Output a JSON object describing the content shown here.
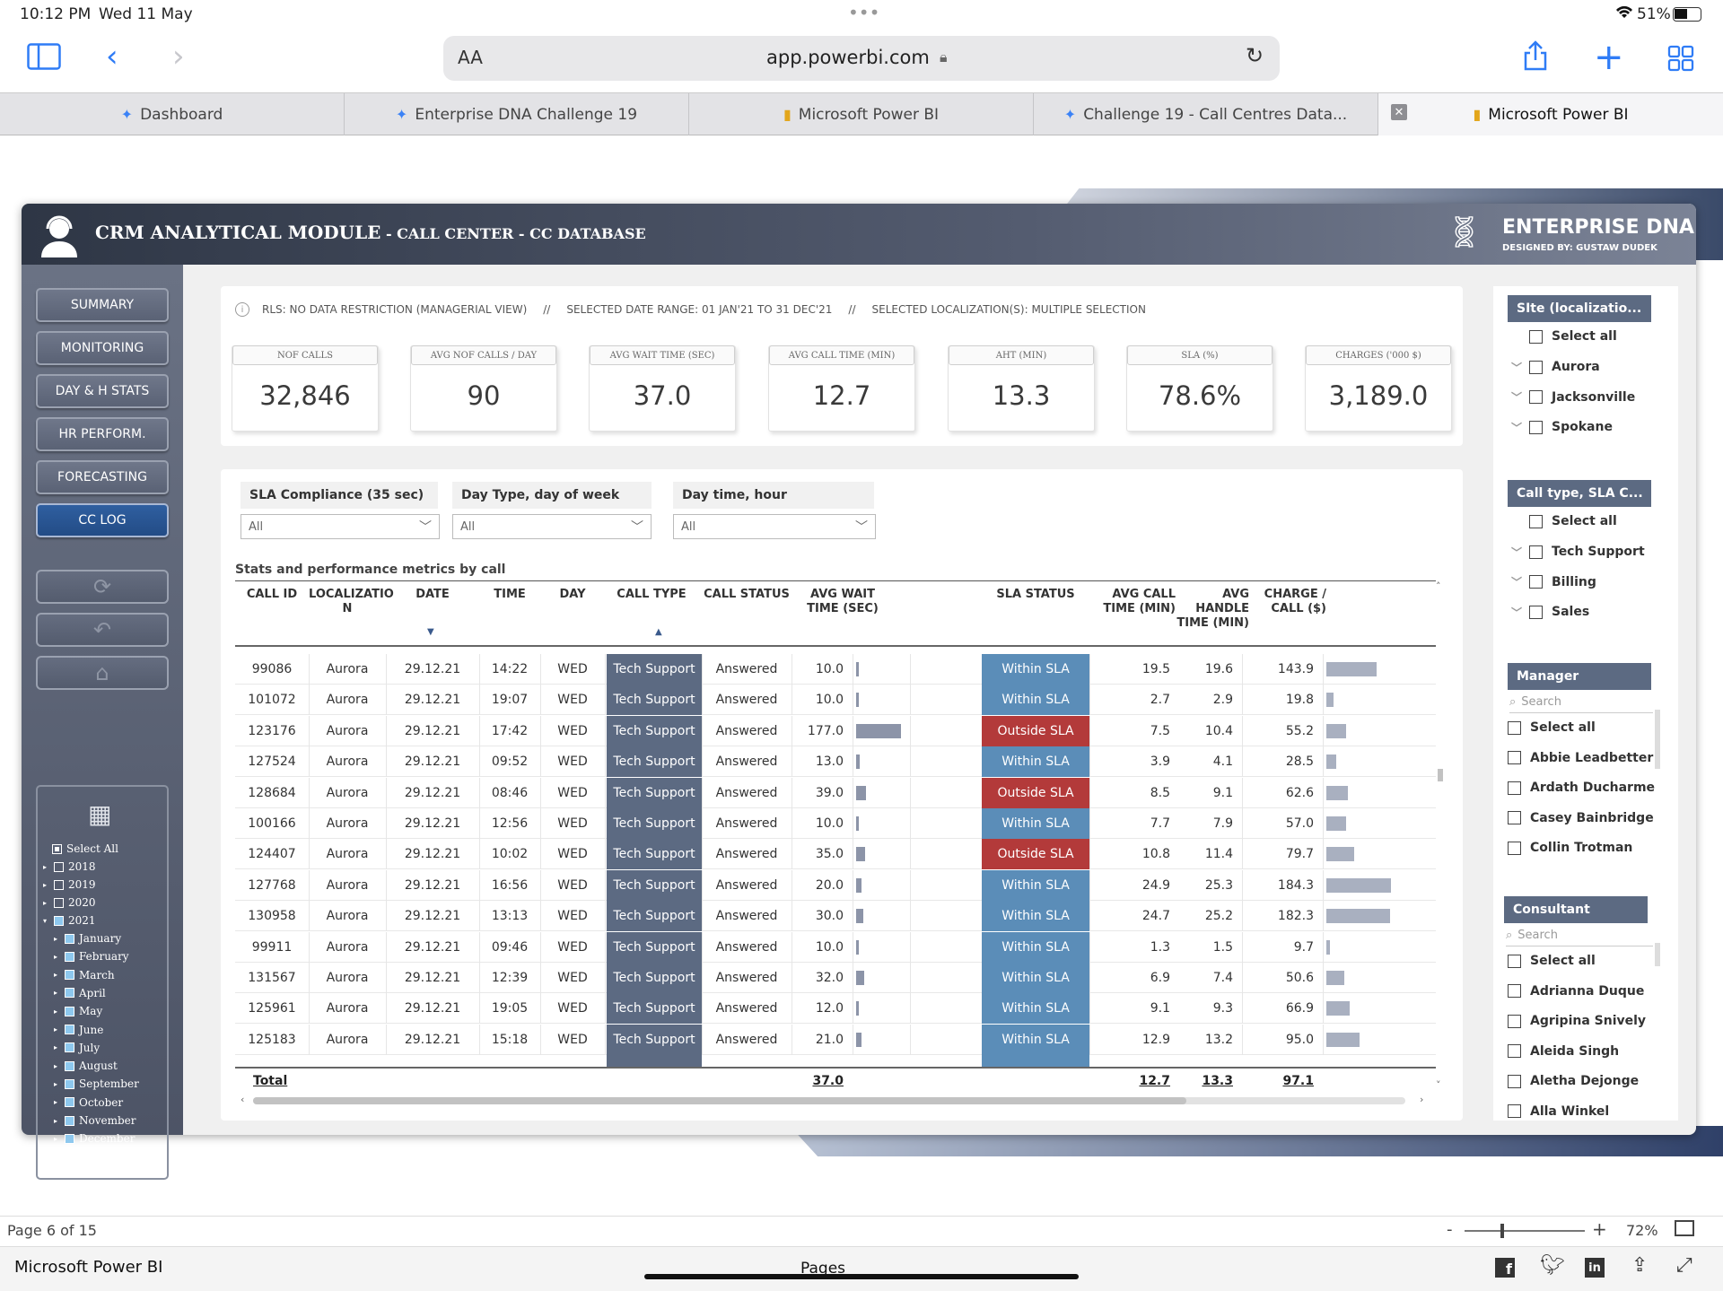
{
  "status_bar": {
    "time": "10:12 PM",
    "date": "Wed 11 May",
    "battery": "51%"
  },
  "browser": {
    "url": "app.powerbi.com",
    "text_size_label": "AA",
    "tabs": [
      {
        "label": "Dashboard"
      },
      {
        "label": "Enterprise DNA Challenge 19"
      },
      {
        "label": "Microsoft Power BI"
      },
      {
        "label": "Challenge 19 - Call Centres Data..."
      },
      {
        "label": "Microsoft Power BI"
      }
    ]
  },
  "report": {
    "title_main": "CRM ANALYTICAL MODULE",
    "title_sub": " - CALL CENTER - CC DATABASE",
    "brand": "ENTERPRISE DNA",
    "designed_by": "DESIGNED BY: GUSTAW DUDEK",
    "nav": [
      "SUMMARY",
      "MONITORING",
      "DAY & H STATS",
      "HR PERFORM.",
      "FORECASTING",
      "CC LOG"
    ],
    "date_tree": {
      "select_all": "Select All",
      "years": [
        "2018",
        "2019",
        "2020",
        "2021"
      ],
      "months": [
        "January",
        "February",
        "March",
        "April",
        "May",
        "June",
        "July",
        "August",
        "September",
        "October",
        "November",
        "December"
      ]
    },
    "info_bar": {
      "rls": "RLS: NO DATA RESTRICTION (MANAGERIAL VIEW)",
      "sep": "//",
      "date_range": "SELECTED DATE RANGE: 01 JAN'21 TO 31 DEC'21",
      "localization": "SELECTED LOCALIZATION(S): MULTIPLE SELECTION"
    },
    "kpis": [
      {
        "label": "NOF CALLS",
        "value": "32,846"
      },
      {
        "label": "AVG NOF CALLS / DAY",
        "value": "90"
      },
      {
        "label": "AVG WAIT TIME (SEC)",
        "value": "37.0"
      },
      {
        "label": "AVG CALL TIME (MIN)",
        "value": "12.7"
      },
      {
        "label": "AHT (MIN)",
        "value": "13.3"
      },
      {
        "label": "SLA (%)",
        "value": "78.6%"
      },
      {
        "label": "CHARGES ('000 $)",
        "value": "3,189.0"
      }
    ],
    "filters": [
      {
        "title": "SLA Compliance (35 sec)",
        "value": "All"
      },
      {
        "title": "Day Type, day of week",
        "value": "All"
      },
      {
        "title": "Day time, hour",
        "value": "All"
      }
    ],
    "table_title": "Stats and performance metrics by call",
    "table": {
      "headers": [
        "CALL ID",
        "LOCALIZATIO N",
        "DATE",
        "TIME",
        "DAY",
        "CALL TYPE",
        "CALL STATUS",
        "AVG WAIT TIME (SEC)",
        "SLA STATUS",
        "AVG CALL TIME (MIN)",
        "AVG HANDLE TIME (MIN)",
        "CHARGE / CALL ($)"
      ],
      "rows": [
        {
          "id": "99086",
          "loc": "Aurora",
          "date": "29.12.21",
          "time": "14:22",
          "day": "WED",
          "type": "Tech Support",
          "status": "Answered",
          "wait": "10.0",
          "wait_n": 10,
          "sla": "Within SLA",
          "call": "19.5",
          "handle": "19.6",
          "charge": "143.9",
          "charge_n": 143.9
        },
        {
          "id": "101072",
          "loc": "Aurora",
          "date": "29.12.21",
          "time": "19:07",
          "day": "WED",
          "type": "Tech Support",
          "status": "Answered",
          "wait": "10.0",
          "wait_n": 10,
          "sla": "Within SLA",
          "call": "2.7",
          "handle": "2.9",
          "charge": "19.8",
          "charge_n": 19.8
        },
        {
          "id": "123176",
          "loc": "Aurora",
          "date": "29.12.21",
          "time": "17:42",
          "day": "WED",
          "type": "Tech Support",
          "status": "Answered",
          "wait": "177.0",
          "wait_n": 177,
          "sla": "Outside SLA",
          "call": "7.5",
          "handle": "10.4",
          "charge": "55.2",
          "charge_n": 55.2
        },
        {
          "id": "127524",
          "loc": "Aurora",
          "date": "29.12.21",
          "time": "09:52",
          "day": "WED",
          "type": "Tech Support",
          "status": "Answered",
          "wait": "13.0",
          "wait_n": 13,
          "sla": "Within SLA",
          "call": "3.9",
          "handle": "4.1",
          "charge": "28.5",
          "charge_n": 28.5
        },
        {
          "id": "128684",
          "loc": "Aurora",
          "date": "29.12.21",
          "time": "08:46",
          "day": "WED",
          "type": "Tech Support",
          "status": "Answered",
          "wait": "39.0",
          "wait_n": 39,
          "sla": "Outside SLA",
          "call": "8.5",
          "handle": "9.1",
          "charge": "62.6",
          "charge_n": 62.6
        },
        {
          "id": "100166",
          "loc": "Aurora",
          "date": "29.12.21",
          "time": "12:56",
          "day": "WED",
          "type": "Tech Support",
          "status": "Answered",
          "wait": "10.0",
          "wait_n": 10,
          "sla": "Within SLA",
          "call": "7.7",
          "handle": "7.9",
          "charge": "57.0",
          "charge_n": 57.0
        },
        {
          "id": "124407",
          "loc": "Aurora",
          "date": "29.12.21",
          "time": "10:02",
          "day": "WED",
          "type": "Tech Support",
          "status": "Answered",
          "wait": "35.0",
          "wait_n": 35,
          "sla": "Outside SLA",
          "call": "10.8",
          "handle": "11.4",
          "charge": "79.7",
          "charge_n": 79.7
        },
        {
          "id": "127768",
          "loc": "Aurora",
          "date": "29.12.21",
          "time": "16:56",
          "day": "WED",
          "type": "Tech Support",
          "status": "Answered",
          "wait": "20.0",
          "wait_n": 20,
          "sla": "Within SLA",
          "call": "24.9",
          "handle": "25.3",
          "charge": "184.3",
          "charge_n": 184.3
        },
        {
          "id": "130958",
          "loc": "Aurora",
          "date": "29.12.21",
          "time": "13:13",
          "day": "WED",
          "type": "Tech Support",
          "status": "Answered",
          "wait": "30.0",
          "wait_n": 30,
          "sla": "Within SLA",
          "call": "24.7",
          "handle": "25.2",
          "charge": "182.3",
          "charge_n": 182.3
        },
        {
          "id": "99911",
          "loc": "Aurora",
          "date": "29.12.21",
          "time": "09:46",
          "day": "WED",
          "type": "Tech Support",
          "status": "Answered",
          "wait": "10.0",
          "wait_n": 10,
          "sla": "Within SLA",
          "call": "1.3",
          "handle": "1.5",
          "charge": "9.7",
          "charge_n": 9.7
        },
        {
          "id": "131567",
          "loc": "Aurora",
          "date": "29.12.21",
          "time": "12:39",
          "day": "WED",
          "type": "Tech Support",
          "status": "Answered",
          "wait": "32.0",
          "wait_n": 32,
          "sla": "Within SLA",
          "call": "6.9",
          "handle": "7.4",
          "charge": "50.6",
          "charge_n": 50.6
        },
        {
          "id": "125961",
          "loc": "Aurora",
          "date": "29.12.21",
          "time": "19:05",
          "day": "WED",
          "type": "Tech Support",
          "status": "Answered",
          "wait": "12.0",
          "wait_n": 12,
          "sla": "Within SLA",
          "call": "9.1",
          "handle": "9.3",
          "charge": "66.9",
          "charge_n": 66.9
        },
        {
          "id": "125183",
          "loc": "Aurora",
          "date": "29.12.21",
          "time": "15:18",
          "day": "WED",
          "type": "Tech Support",
          "status": "Answered",
          "wait": "21.0",
          "wait_n": 21,
          "sla": "Within SLA",
          "call": "12.9",
          "handle": "13.2",
          "charge": "95.0",
          "charge_n": 95.0
        }
      ],
      "total": {
        "label": "Total",
        "wait": "37.0",
        "call": "12.7",
        "handle": "13.3",
        "charge": "97.1"
      }
    },
    "slicers": {
      "site": {
        "title": "SIte (localizatio...",
        "items": [
          "Select all",
          "Aurora",
          "Jacksonville",
          "Spokane"
        ]
      },
      "call_type": {
        "title": "Call type, SLA C...",
        "items": [
          "Select all",
          "Tech Support",
          "Billing",
          "Sales"
        ]
      },
      "manager": {
        "title": "Manager",
        "search": "Search",
        "items": [
          "Select all",
          "Abbie Leadbetter",
          "Ardath Ducharme",
          "Casey Bainbridge",
          "Collin Trotman"
        ]
      },
      "consultant": {
        "title": "Consultant",
        "search": "Search",
        "items": [
          "Select all",
          "Adrianna Duque",
          "Agripina Snively",
          "Aleida Singh",
          "Aletha Dejonge",
          "Alla Winkel"
        ]
      }
    },
    "colors": {
      "within_sla": "#5b8db8",
      "outside_sla": "#b33a3a",
      "call_type": "#5c6a82",
      "slicer_header": "#5c6a82"
    }
  },
  "bottom": {
    "page": "Page 6 of 15",
    "zoom": "72%"
  },
  "footer": {
    "app": "Microsoft Power BI",
    "pages": "Pages"
  }
}
